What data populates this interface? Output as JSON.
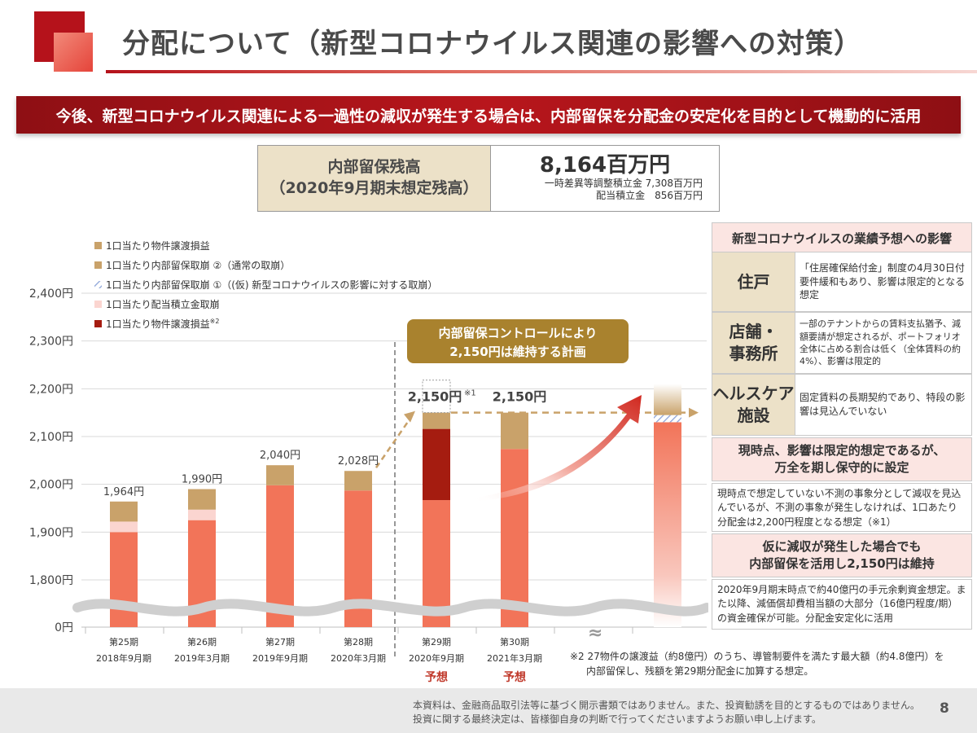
{
  "header": {
    "title": "分配について（新型コロナウイルス関連の影響への対策）"
  },
  "banner": "今後、新型コロナウイルス関連による一過性の減収が発生する場合は、内部留保を分配金の安定化を目的として機動的に活用",
  "retained_earnings": {
    "label_line1": "内部留保残高",
    "label_line2": "（2020年9月期末想定残高）",
    "value": "8,164百万円",
    "detail_line1": "一時差異等調整積立金 7,308百万円",
    "detail_line2": "配当積立金　856百万円"
  },
  "chart_data": {
    "type": "bar",
    "stacked": true,
    "y_axis_ticks": [
      "0円",
      "1,800円",
      "1,900円",
      "2,000円",
      "2,100円",
      "2,200円",
      "2,300円",
      "2,400円"
    ],
    "ylim": [
      1750,
      2400
    ],
    "y_axis_break": true,
    "categories": [
      {
        "period": "第25期",
        "date": "2018年9月期",
        "forecast": ""
      },
      {
        "period": "第26期",
        "date": "2019年3月期",
        "forecast": ""
      },
      {
        "period": "第27期",
        "date": "2019年9月期",
        "forecast": ""
      },
      {
        "period": "第28期",
        "date": "2020年3月期",
        "forecast": ""
      },
      {
        "period": "第29期",
        "date": "2020年9月期",
        "forecast": "予想"
      },
      {
        "period": "第30期",
        "date": "2021年3月期",
        "forecast": "予想"
      }
    ],
    "legend": [
      {
        "label": "1口当たり物件譲渡損益",
        "color": "#c9a26a",
        "sup": ""
      },
      {
        "label": "1口当たり内部留保取崩 ②（通常の取崩）",
        "color": "#c9a26a",
        "sup": ""
      },
      {
        "label": "1口当たり内部留保取崩 ①（(仮) 新型コロナウイルスの影響に対する取崩）",
        "color": "#8aa2d8",
        "sup": ""
      },
      {
        "label": "1口当たり配当積立金取崩",
        "color": "#fbd5d0",
        "sup": ""
      },
      {
        "label": "1口当たり物件譲渡損益",
        "color": "#a51c10",
        "sup": "※2"
      }
    ],
    "series": [
      {
        "name": "base",
        "color": "#f27459",
        "values": [
          1900,
          1925,
          1998,
          1987,
          1967,
          2074
        ]
      },
      {
        "name": "配当積立金取崩",
        "color": "#fbd5d0",
        "values": [
          22,
          22,
          0,
          0,
          0,
          0
        ]
      },
      {
        "name": "物件譲渡損益※2",
        "color": "#a51c10",
        "values": [
          0,
          0,
          0,
          0,
          149,
          0
        ]
      },
      {
        "name": "物件譲渡損益",
        "color": "#c9a26a",
        "values": [
          42,
          43,
          42,
          41,
          34,
          76
        ]
      }
    ],
    "totals": [
      1964,
      1990,
      2040,
      2028,
      2150,
      2150
    ],
    "total_labels": [
      "1,964円",
      "1,990円",
      "2,040円",
      "2,028円",
      "2,150円",
      "2,150円"
    ],
    "total_label_sup": [
      "",
      "",
      "",
      "",
      "※1",
      ""
    ],
    "target_line_value": 2150,
    "dotted_box_top": 2218,
    "callout": {
      "line1": "内部留保コントロールにより",
      "line2": "2,150円は維持する計画"
    },
    "break_mark": "≈"
  },
  "panel": {
    "header": "新型コロナウイルスの業績予想への影響",
    "rows": [
      {
        "label": "住戸",
        "text": "「住居確保給付金」制度の4月30日付要件緩和もあり、影響は限定的となる想定"
      },
      {
        "label": "店舗・\n事務所",
        "text": "一部のテナントからの賃料支払猶予、減額要請が想定されるが、ポートフォリオ全体に占める割合は低く（全体賃料の約4%）、影響は限定的"
      },
      {
        "label": "ヘルスケア\n施設",
        "text": "固定賃料の長期契約であり、特段の影響は見込んでいない"
      }
    ],
    "assumption_head_line1": "現時点、影響は限定的想定であるが、",
    "assumption_head_line2": "万全を期し保守的に設定",
    "assumption_text": "現時点で想定していない不測の事象分として減収を見込んでいるが、不測の事象が発生しなければ、1口あたり分配金は2,200円程度となる想定（※1）",
    "decline_head_line1": "仮に減収が発生した場合でも",
    "decline_head_line2": "内部留保を活用し2,150円は維持",
    "decline_text": "2020年9月期末時点で約40億円の手元余剰資金想定。また以降、減価償却費相当額の大部分（16億円程度/期）の資金確保が可能。分配金安定化に活用"
  },
  "footnote_line1": "※2 27物件の譲渡益（約8億円）のうち、導管制要件を満たす最大額（約4.8億円）を",
  "footnote_line2": "内部留保し、残額を第29期分配金に加算する想定。",
  "footer": {
    "disclaimer_line1": "本資料は、金融商品取引法等に基づく開示書類ではありません。また、投資勧誘を目的とするものではありません。",
    "disclaimer_line2": "投資に関する最終決定は、皆様御自身の判断で行ってくださいますようお願い申し上げます。",
    "page_number": "8"
  }
}
